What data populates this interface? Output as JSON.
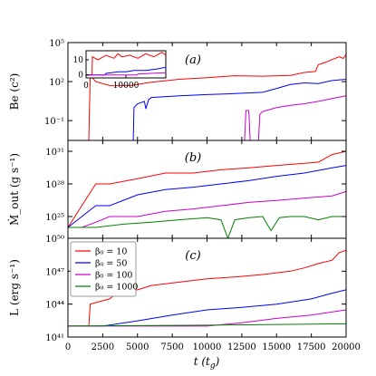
{
  "figure": {
    "xlabel": "t (t_g)",
    "xticks": [
      "0",
      "2500",
      "5000",
      "7500",
      "10000",
      "12500",
      "15000",
      "17500",
      "20000"
    ],
    "legend": [
      "β₀ = 10",
      "β₀ = 50",
      "β₀ = 100",
      "β₀ = 1000"
    ],
    "colors": {
      "b10": "#ff0000",
      "b50": "#0000ff",
      "b100": "#cc00cc",
      "b1000": "#008000"
    }
  },
  "chart_data": [
    {
      "type": "line",
      "panel_label": "(a)",
      "ylabel": "Be (c²)",
      "yscale": "log",
      "ylim": [
        0.003,
        100000
      ],
      "ytick_labels": [
        "10⁵",
        "10²",
        "10⁻¹"
      ],
      "xlim": [
        0,
        20000
      ],
      "series": [
        {
          "name": "β₀ = 10",
          "color": "#ff0000",
          "x": [
            1500,
            1600,
            2000,
            3000,
            4500,
            6000,
            8000,
            10000,
            12000,
            14000,
            16000,
            17000,
            17800,
            18000,
            18500,
            19000,
            19500,
            19800,
            20000
          ],
          "y": [
            0.003,
            300,
            100,
            50,
            50,
            90,
            150,
            200,
            280,
            260,
            300,
            500,
            600,
            2000,
            3000,
            5000,
            8000,
            6000,
            12000
          ]
        },
        {
          "name": "β₀ = 50",
          "color": "#0000ff",
          "x": [
            4700,
            4750,
            5000,
            5500,
            5600,
            5800,
            6000,
            8000,
            10000,
            12000,
            14000,
            15000,
            16000,
            17000,
            18000,
            19000,
            20000
          ],
          "y": [
            0.003,
            1,
            2,
            3,
            0.8,
            4,
            6,
            8,
            10,
            12,
            15,
            30,
            60,
            80,
            70,
            120,
            150
          ]
        },
        {
          "name": "β₀ = 100",
          "color": "#cc00cc",
          "x": [
            12700,
            12800,
            12900,
            13000,
            13100,
            13200,
            13700,
            13800,
            14000,
            15000,
            16000,
            17000,
            18000,
            19000,
            20000
          ],
          "y": [
            0.003,
            0.6,
            0.6,
            0.6,
            0.003,
            0.003,
            0.003,
            0.3,
            0.5,
            1,
            1.5,
            2,
            3,
            5,
            8
          ]
        }
      ],
      "inset": {
        "type": "line",
        "xticks": [
          "0",
          "10000"
        ],
        "yticks": [
          "0",
          "10"
        ],
        "xlim": [
          0,
          20000
        ],
        "ylim": [
          -2,
          16
        ],
        "series": [
          {
            "name": "β₀ = 10",
            "color": "#ff0000",
            "x": [
              0,
              1500,
              1600,
              3000,
              5000,
              7000,
              8000,
              9000,
              11000,
              13000,
              15000,
              17000,
              19000,
              20000
            ],
            "y": [
              0,
              0,
              12,
              10,
              13,
              11,
              14,
              12,
              13,
              11,
              14,
              12,
              15,
              13
            ]
          },
          {
            "name": "β₀ = 50",
            "color": "#0000ff",
            "x": [
              0,
              4700,
              5000,
              8000,
              10000,
              12000,
              15000,
              18000,
              20000
            ],
            "y": [
              0,
              0,
              1,
              2,
              2,
              3,
              3,
              4,
              5
            ]
          },
          {
            "name": "β₀ = 100",
            "color": "#cc00cc",
            "x": [
              0,
              12700,
              13000,
              16000,
              20000
            ],
            "y": [
              0,
              0,
              0.5,
              1,
              1.5
            ]
          }
        ]
      }
    },
    {
      "type": "line",
      "panel_label": "(b)",
      "ylabel": "Ṁ_out (g s⁻¹)",
      "yscale": "log",
      "ylim": [
        1e+23,
        1e+32
      ],
      "ytick_labels": [
        "10³¹",
        "10²⁸",
        "10²⁵"
      ],
      "xlim": [
        0,
        20000
      ],
      "series": [
        {
          "name": "β₀ = 10",
          "color": "#ff0000",
          "x": [
            0,
            500,
            1000,
            1500,
            2000,
            3000,
            5000,
            7000,
            9000,
            11000,
            13000,
            15000,
            17000,
            18000,
            19000,
            20000
          ],
          "y": [
            1e+24,
            1e+25,
            1e+26,
            1e+27,
            1e+28,
            1e+28,
            3e+28,
            1e+29,
            1e+29,
            2e+29,
            3e+29,
            5e+29,
            8e+29,
            1e+30,
            5e+30,
            1e+31
          ]
        },
        {
          "name": "β₀ = 50",
          "color": "#0000ff",
          "x": [
            0,
            1000,
            2000,
            3000,
            5000,
            7000,
            9000,
            11000,
            13000,
            15000,
            17000,
            19000,
            20000
          ],
          "y": [
            1e+24,
            1e+25,
            1e+26,
            1e+26,
            1e+27,
            3e+27,
            5e+27,
            1e+28,
            2e+28,
            5e+28,
            1e+29,
            3e+29,
            5e+29
          ]
        },
        {
          "name": "β₀ = 100",
          "color": "#cc00cc",
          "x": [
            0,
            1000,
            2000,
            3000,
            5000,
            7000,
            9000,
            11000,
            13000,
            15000,
            17000,
            19000,
            20000
          ],
          "y": [
            1e+24,
            1e+24,
            3e+24,
            1e+25,
            1e+25,
            3e+25,
            5e+25,
            1e+26,
            2e+26,
            3e+26,
            5e+26,
            8e+26,
            2e+27
          ]
        },
        {
          "name": "β₀ = 1000",
          "color": "#008000",
          "x": [
            0,
            2000,
            4000,
            6000,
            8000,
            10000,
            11000,
            11500,
            12000,
            13000,
            14000,
            14600,
            15200,
            16000,
            17000,
            18000,
            19000,
            20000
          ],
          "y": [
            1e+24,
            1e+24,
            2e+24,
            3e+24,
            5e+24,
            8e+24,
            5e+24,
            1e+23,
            5e+24,
            8e+24,
            1e+25,
            5e+23,
            8e+24,
            1e+25,
            1e+25,
            5e+24,
            1e+25,
            1e+25
          ]
        }
      ]
    },
    {
      "type": "line",
      "panel_label": "(c)",
      "ylabel": "L (erg s⁻¹)",
      "yscale": "log",
      "ylim": [
        1e+41,
        1e+50
      ],
      "ytick_labels": [
        "10⁵⁰",
        "10⁴⁷",
        "10⁴⁴",
        "10⁴¹"
      ],
      "xlim": [
        0,
        20000
      ],
      "legend_position": "top-left",
      "series": [
        {
          "name": "β₀ = 10",
          "color": "#ff0000",
          "x": [
            0,
            1500,
            1600,
            3000,
            3500,
            5000,
            6000,
            8000,
            10000,
            12000,
            14000,
            16000,
            17000,
            18000,
            19000,
            19500,
            20000
          ],
          "y": [
            1e+42,
            1e+42,
            1e+44,
            3e+44,
            1e+45,
            2e+45,
            5e+45,
            1e+46,
            2e+46,
            3e+46,
            5e+46,
            1e+47,
            2e+47,
            5e+47,
            1e+48,
            5e+48,
            8e+48
          ]
        },
        {
          "name": "β₀ = 50",
          "color": "#0000ff",
          "x": [
            0,
            2500,
            5000,
            7500,
            10000,
            12500,
            15000,
            17500,
            19000,
            20000
          ],
          "y": [
            1e+42,
            1e+42,
            3e+42,
            1e+43,
            3e+43,
            5e+43,
            1e+44,
            3e+44,
            1e+45,
            2e+45
          ]
        },
        {
          "name": "β₀ = 100",
          "color": "#cc00cc",
          "x": [
            0,
            5000,
            10000,
            12500,
            15000,
            17500,
            20000
          ],
          "y": [
            1e+42,
            1e+42,
            1e+42,
            2e+42,
            5e+42,
            1e+43,
            3e+43
          ]
        },
        {
          "name": "β₀ = 1000",
          "color": "#008000",
          "x": [
            0,
            5000,
            10000,
            15000,
            20000
          ],
          "y": [
            1e+42,
            1.1e+42,
            1.2e+42,
            1.4e+42,
            1.6e+42
          ]
        }
      ]
    }
  ]
}
